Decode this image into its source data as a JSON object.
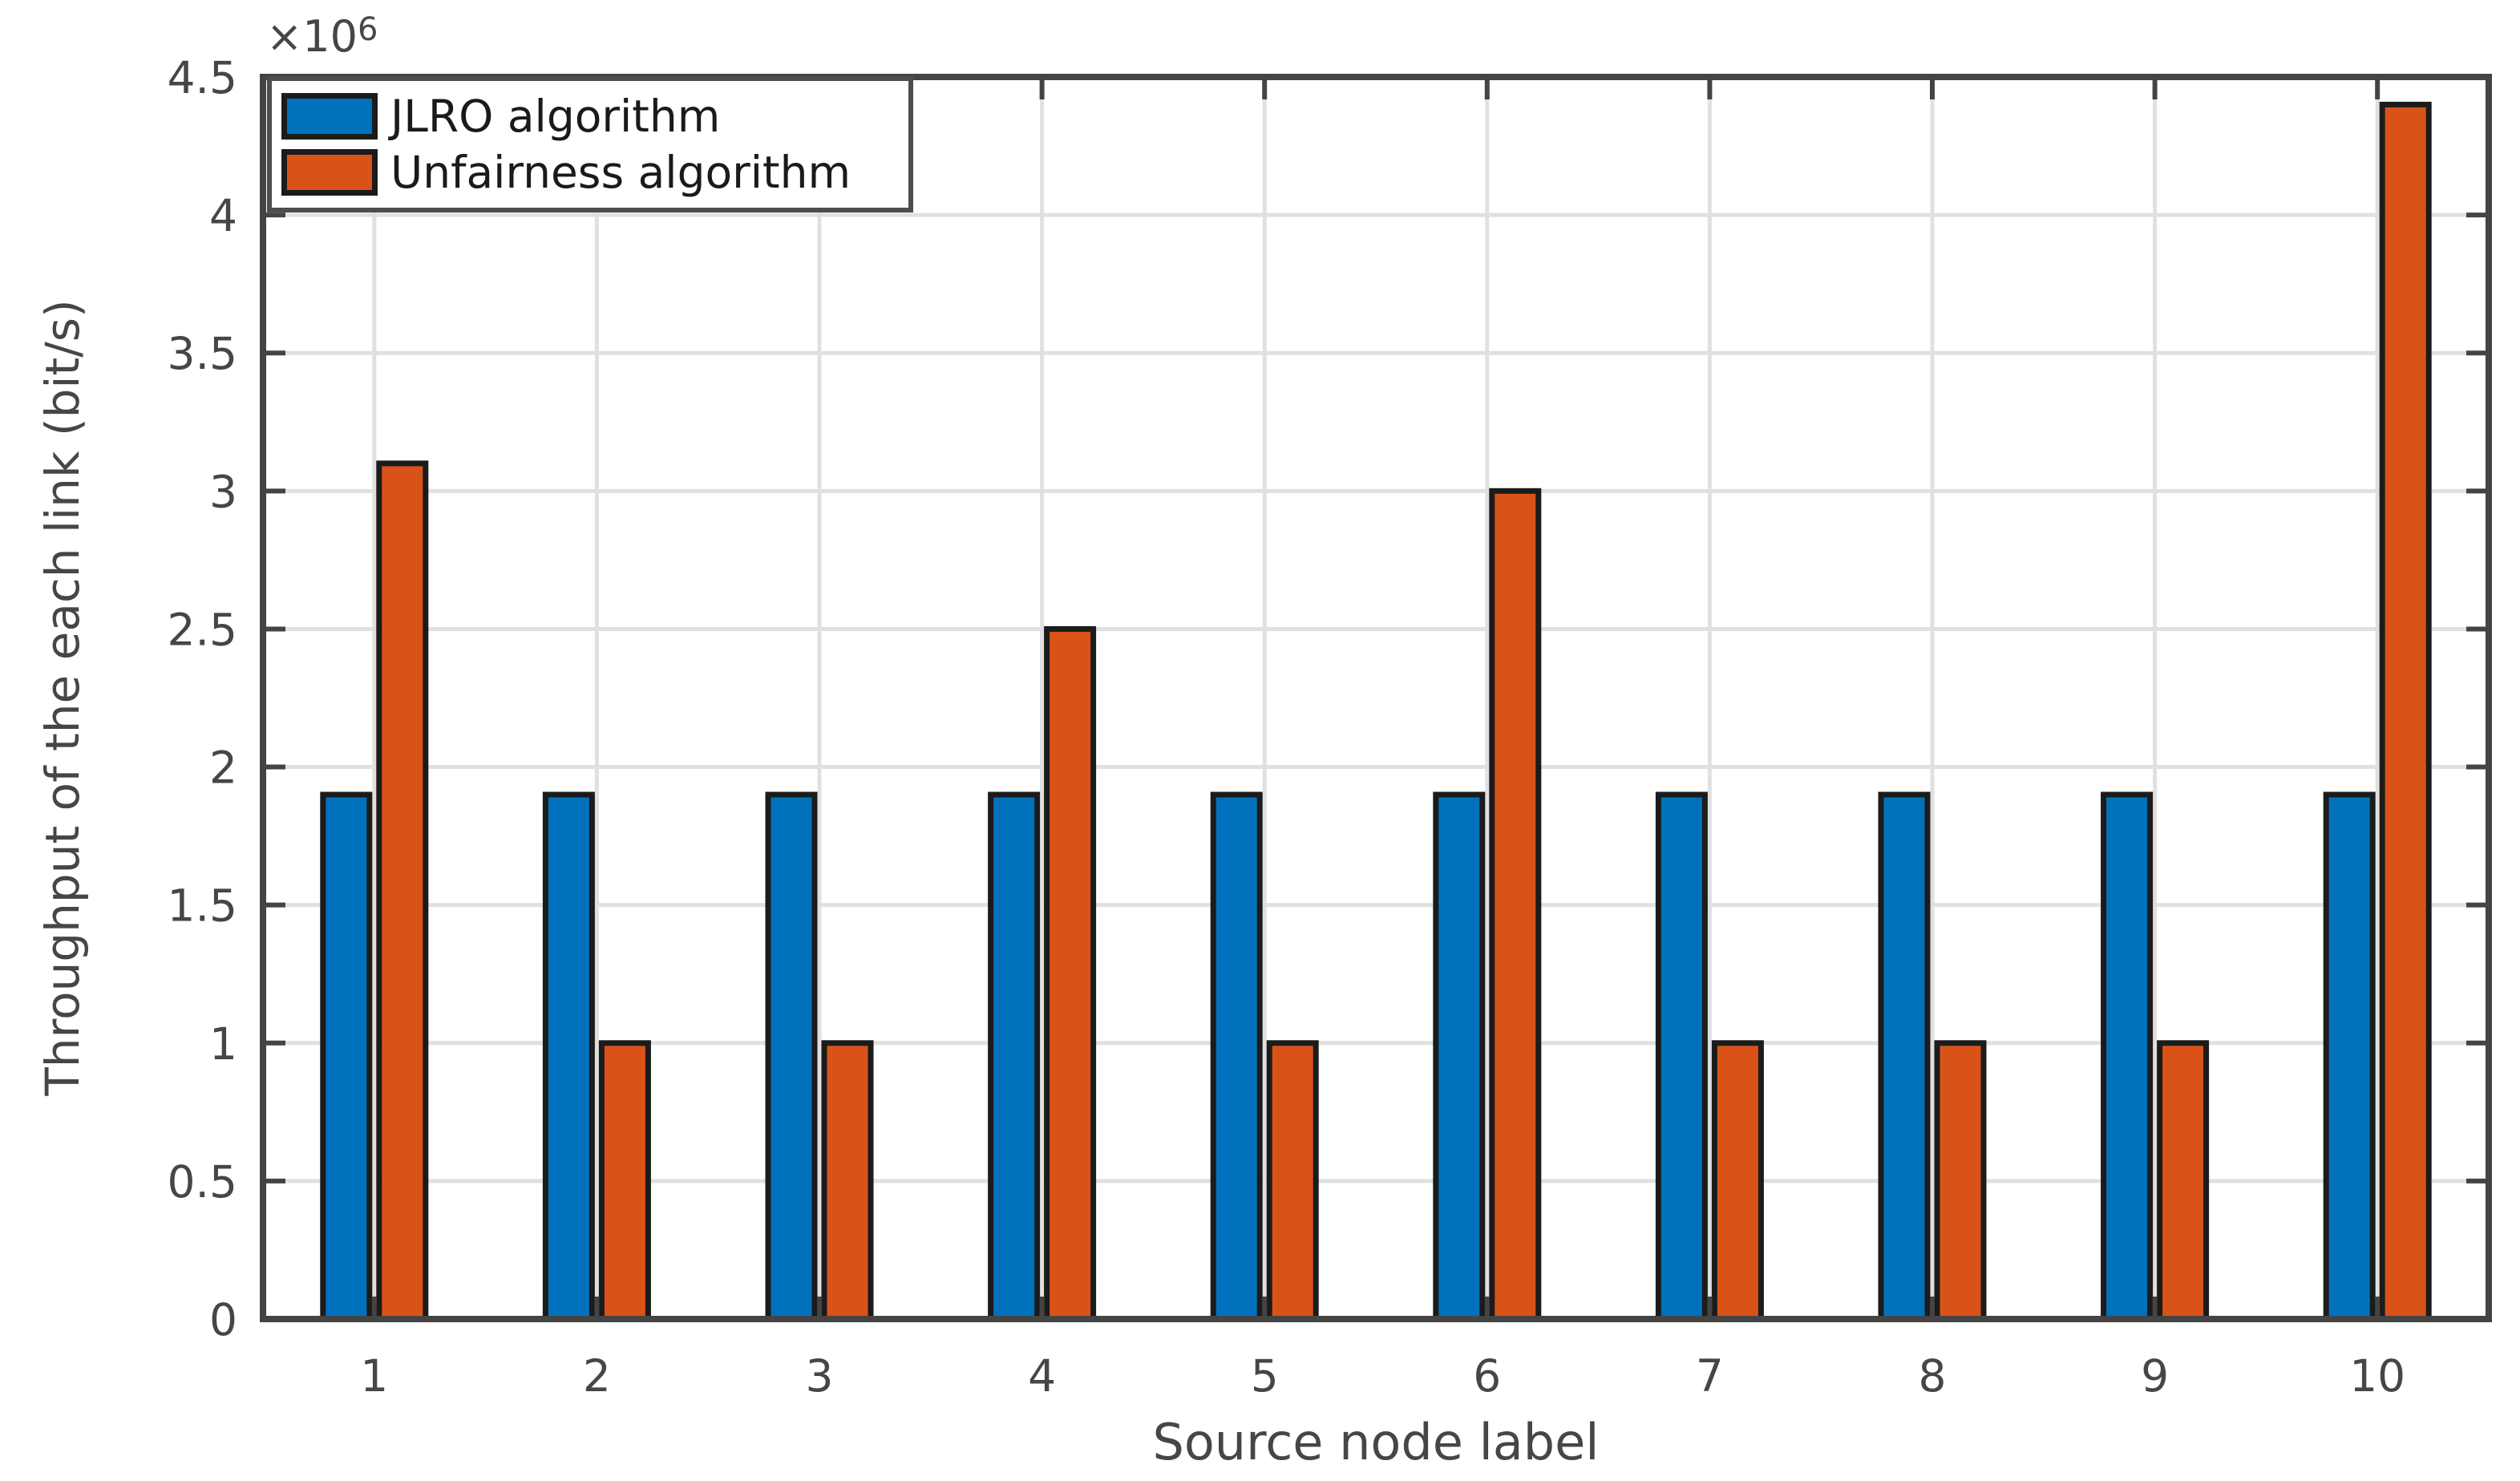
{
  "chart_data": {
    "type": "bar",
    "title": "",
    "xlabel": "Source node label",
    "ylabel": "Throughput of the each link (bit/s)",
    "y_exponent": {
      "base": "×10",
      "exp": "6"
    },
    "categories": [
      "1",
      "2",
      "3",
      "4",
      "5",
      "6",
      "7",
      "8",
      "9",
      "10"
    ],
    "series": [
      {
        "name": "JLRO algorithm",
        "color": "#0072BD",
        "values": [
          1900000,
          1900000,
          1900000,
          1900000,
          1900000,
          1900000,
          1900000,
          1900000,
          1900000,
          1900000
        ]
      },
      {
        "name": "Unfairness algorithm",
        "color": "#D95319",
        "values": [
          3100000,
          1000000,
          1000000,
          2500000,
          1000000,
          3000000,
          1000000,
          1000000,
          1000000,
          4400000
        ]
      }
    ],
    "ylim": [
      0,
      4500000
    ],
    "ytick_values": [
      0,
      500000,
      1000000,
      1500000,
      2000000,
      2500000,
      3000000,
      3500000,
      4000000,
      4500000
    ],
    "ytick_labels": [
      "0",
      "0.5",
      "1",
      "1.5",
      "2",
      "2.5",
      "3",
      "3.5",
      "4",
      "4.5"
    ],
    "grid": true,
    "legend_position": "top-left",
    "axis_color": "#444444",
    "grid_color": "#E0E0E0",
    "text_color": "#464646",
    "bar_edge_color": "#1B1B1B"
  }
}
